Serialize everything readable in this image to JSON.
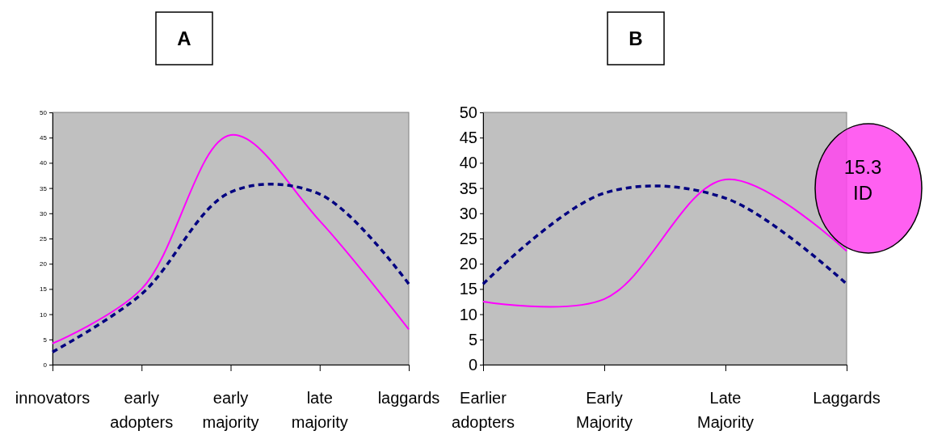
{
  "chart_data": [
    {
      "type": "line",
      "title": "A",
      "categories": [
        "innovators",
        "early adopters",
        "early majority",
        "late majority",
        "laggards"
      ],
      "ylim": [
        0,
        50
      ],
      "yticks": [
        0,
        5,
        10,
        15,
        20,
        25,
        30,
        35,
        40,
        45,
        50
      ],
      "grid": false,
      "marker": "none",
      "series": [
        {
          "color": "#ff00ff",
          "values": [
            4.2,
            15,
            45.5,
            28.5,
            7
          ],
          "line_style": "solid"
        },
        {
          "color": "#000080",
          "values": [
            2.5,
            14,
            34.2,
            33.8,
            16
          ],
          "line_style": "dashed"
        }
      ]
    },
    {
      "type": "line",
      "title": "B",
      "categories": [
        "Earlier adopters",
        "Early Majority",
        "Late Majority",
        "Laggards"
      ],
      "ylim": [
        0,
        50
      ],
      "yticks": [
        0,
        5,
        10,
        15,
        20,
        25,
        30,
        35,
        40,
        45,
        50
      ],
      "grid": false,
      "marker": "none",
      "annotations": [
        "15.3 ID"
      ],
      "series": [
        {
          "color": "#ff00ff",
          "values": [
            12.5,
            13,
            36.7,
            22.5
          ],
          "line_style": "solid"
        },
        {
          "color": "#000080",
          "values": [
            16,
            34,
            33,
            16
          ],
          "line_style": "dashed"
        }
      ]
    }
  ]
}
